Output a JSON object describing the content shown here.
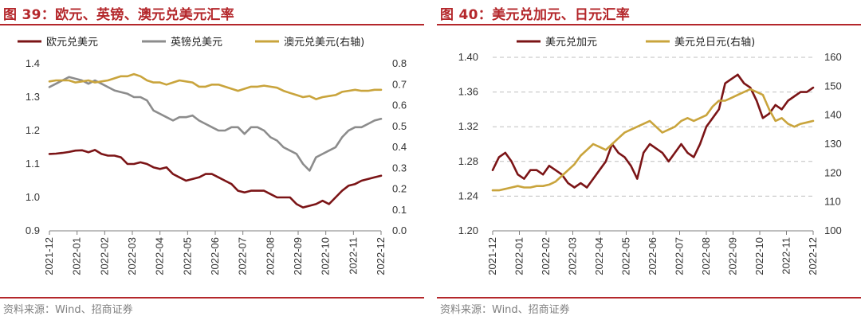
{
  "colors": {
    "accent": "#b4272b",
    "eur": "#7b1416",
    "gbp": "#8c8c8c",
    "aud": "#c9a43c",
    "cad": "#7b1416",
    "jpy": "#c9a43c",
    "grid": "#bfbfbf"
  },
  "source_text": "资料来源：Wind、招商证券",
  "chart_data": [
    {
      "type": "line",
      "title": "图 39：欧元、英镑、澳元兑美元汇率",
      "x_ticks": [
        "2021-12",
        "2022-01",
        "2022-02",
        "2022-03",
        "2022-04",
        "2022-05",
        "2022-06",
        "2022-07",
        "2022-08",
        "2022-09",
        "2022-10",
        "2022-11",
        "2022-12"
      ],
      "y_left": {
        "min": 0.9,
        "max": 1.4,
        "ticks": [
          "0.9",
          "1.0",
          "1.1",
          "1.2",
          "1.3",
          "1.4"
        ]
      },
      "y_right": {
        "min": 0.0,
        "max": 0.8,
        "ticks": [
          "0.0",
          "0.1",
          "0.2",
          "0.3",
          "0.4",
          "0.5",
          "0.6",
          "0.7",
          "0.8"
        ]
      },
      "series": [
        {
          "name": "欧元兑美元",
          "axis": "left",
          "color": "#7b1416",
          "values": [
            1.13,
            1.131,
            1.133,
            1.136,
            1.14,
            1.141,
            1.135,
            1.142,
            1.13,
            1.125,
            1.125,
            1.12,
            1.1,
            1.1,
            1.105,
            1.1,
            1.09,
            1.085,
            1.09,
            1.07,
            1.06,
            1.05,
            1.055,
            1.06,
            1.07,
            1.07,
            1.06,
            1.05,
            1.04,
            1.02,
            1.015,
            1.02,
            1.02,
            1.02,
            1.01,
            1.0,
            1.0,
            1.0,
            0.98,
            0.97,
            0.975,
            0.98,
            0.99,
            0.98,
            1.0,
            1.02,
            1.035,
            1.04,
            1.05,
            1.055,
            1.06,
            1.065
          ]
        },
        {
          "name": "英镑兑美元",
          "axis": "left",
          "color": "#8c8c8c",
          "values": [
            1.33,
            1.34,
            1.35,
            1.36,
            1.355,
            1.35,
            1.34,
            1.35,
            1.34,
            1.33,
            1.32,
            1.315,
            1.31,
            1.3,
            1.3,
            1.29,
            1.26,
            1.25,
            1.24,
            1.23,
            1.24,
            1.24,
            1.245,
            1.23,
            1.22,
            1.21,
            1.2,
            1.2,
            1.21,
            1.21,
            1.19,
            1.21,
            1.21,
            1.2,
            1.18,
            1.17,
            1.15,
            1.14,
            1.13,
            1.1,
            1.08,
            1.12,
            1.13,
            1.14,
            1.15,
            1.18,
            1.2,
            1.21,
            1.21,
            1.22,
            1.23,
            1.235
          ]
        },
        {
          "name": "澳元兑美元(右轴)",
          "axis": "right",
          "color": "#c9a43c",
          "values": [
            0.715,
            0.72,
            0.72,
            0.72,
            0.71,
            0.715,
            0.72,
            0.71,
            0.715,
            0.72,
            0.73,
            0.74,
            0.74,
            0.75,
            0.74,
            0.72,
            0.71,
            0.71,
            0.7,
            0.71,
            0.72,
            0.715,
            0.71,
            0.69,
            0.69,
            0.7,
            0.7,
            0.69,
            0.68,
            0.67,
            0.68,
            0.69,
            0.69,
            0.695,
            0.69,
            0.685,
            0.67,
            0.66,
            0.65,
            0.64,
            0.645,
            0.63,
            0.64,
            0.645,
            0.65,
            0.665,
            0.67,
            0.675,
            0.67,
            0.67,
            0.675,
            0.675
          ]
        }
      ]
    },
    {
      "type": "line",
      "title": "图 40：美元兑加元、日元汇率",
      "x_ticks": [
        "2021-12",
        "2022-01",
        "2022-02",
        "2022-03",
        "2022-04",
        "2022-05",
        "2022-06",
        "2022-07",
        "2022-08",
        "2022-09",
        "2022-10",
        "2022-11",
        "2022-12"
      ],
      "y_left": {
        "min": 1.2,
        "max": 1.4,
        "ticks": [
          "1.20",
          "1.24",
          "1.28",
          "1.32",
          "1.36",
          "1.40"
        ]
      },
      "y_right": {
        "min": 100,
        "max": 160,
        "ticks": [
          "100",
          "110",
          "120",
          "130",
          "140",
          "150",
          "160"
        ]
      },
      "series": [
        {
          "name": "美元兑加元",
          "axis": "left",
          "color": "#7b1416",
          "values": [
            1.27,
            1.285,
            1.29,
            1.28,
            1.265,
            1.26,
            1.27,
            1.27,
            1.265,
            1.275,
            1.27,
            1.265,
            1.255,
            1.25,
            1.255,
            1.25,
            1.26,
            1.27,
            1.28,
            1.3,
            1.29,
            1.285,
            1.275,
            1.26,
            1.29,
            1.3,
            1.295,
            1.29,
            1.28,
            1.29,
            1.3,
            1.29,
            1.285,
            1.3,
            1.32,
            1.33,
            1.34,
            1.37,
            1.375,
            1.38,
            1.37,
            1.365,
            1.35,
            1.33,
            1.335,
            1.345,
            1.34,
            1.35,
            1.355,
            1.36,
            1.36,
            1.365
          ]
        },
        {
          "name": "美元兑日元(右轴)",
          "axis": "right",
          "color": "#c9a43c",
          "values": [
            114,
            114,
            114.5,
            115,
            115.5,
            115,
            115,
            115.5,
            115.5,
            116,
            117,
            119,
            121,
            123,
            126,
            128,
            130,
            129,
            128,
            130,
            132,
            134,
            135,
            136,
            137,
            138,
            136,
            134,
            135,
            136,
            138,
            139,
            138,
            139,
            140,
            143,
            145,
            145,
            146,
            147,
            148,
            149,
            148,
            147,
            142,
            138,
            139,
            137,
            136,
            137,
            137.5,
            138
          ]
        }
      ]
    }
  ]
}
